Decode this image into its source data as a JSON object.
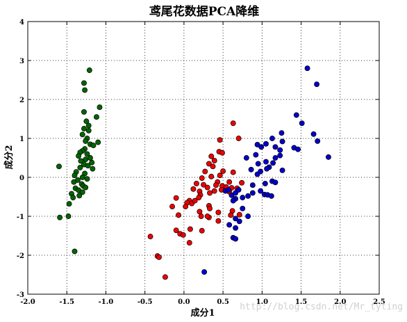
{
  "chart_data": {
    "type": "scatter",
    "title": "鸢尾花数据PCA降维",
    "xlabel": "成分1",
    "ylabel": "成分2",
    "xlim": [
      -2.0,
      2.5
    ],
    "ylim": [
      -3,
      4
    ],
    "xticks": [
      "-2.0",
      "-1.5",
      "-1.0",
      "-0.5",
      "0.0",
      "0.5",
      "1.0",
      "1.5",
      "2.0",
      "2.5"
    ],
    "yticks": [
      "-3",
      "-2",
      "-1",
      "0",
      "1",
      "2",
      "3",
      "4"
    ],
    "grid": true,
    "series": [
      {
        "color": "#006400",
        "points": [
          [
            -1.21,
            2.75
          ],
          [
            -1.28,
            2.42
          ],
          [
            -1.27,
            2.24
          ],
          [
            -1.08,
            1.8
          ],
          [
            -1.28,
            1.68
          ],
          [
            -1.12,
            1.55
          ],
          [
            -1.25,
            1.44
          ],
          [
            -1.22,
            1.33
          ],
          [
            -1.28,
            1.25
          ],
          [
            -1.22,
            1.2
          ],
          [
            -1.3,
            1.1
          ],
          [
            -1.24,
            1.0
          ],
          [
            -1.26,
            0.93
          ],
          [
            -1.2,
            0.85
          ],
          [
            -1.16,
            0.82
          ],
          [
            -1.1,
            0.9
          ],
          [
            -1.27,
            0.73
          ],
          [
            -1.3,
            0.68
          ],
          [
            -1.33,
            0.64
          ],
          [
            -1.24,
            0.6
          ],
          [
            -1.35,
            0.55
          ],
          [
            -1.2,
            0.5
          ],
          [
            -1.26,
            0.46
          ],
          [
            -1.32,
            0.42
          ],
          [
            -1.18,
            0.38
          ],
          [
            -1.28,
            0.33
          ],
          [
            -1.23,
            0.3
          ],
          [
            -1.33,
            0.25
          ],
          [
            -1.17,
            0.22
          ],
          [
            -1.6,
            0.28
          ],
          [
            -1.38,
            0.14
          ],
          [
            -1.27,
            0.1
          ],
          [
            -1.4,
            0.05
          ],
          [
            -1.3,
            0.0
          ],
          [
            -1.24,
            -0.04
          ],
          [
            -1.36,
            -0.07
          ],
          [
            -1.41,
            -0.12
          ],
          [
            -1.31,
            -0.17
          ],
          [
            -1.29,
            -0.22
          ],
          [
            -1.39,
            -0.28
          ],
          [
            -1.26,
            -0.26
          ],
          [
            -1.35,
            -0.33
          ],
          [
            -1.3,
            -0.38
          ],
          [
            -1.44,
            -0.42
          ],
          [
            -1.34,
            -0.47
          ],
          [
            -1.42,
            -0.52
          ],
          [
            -1.47,
            -0.68
          ],
          [
            -1.59,
            -1.03
          ],
          [
            -1.48,
            -1.0
          ],
          [
            -1.4,
            -1.9
          ]
        ]
      },
      {
        "color": "#ee0000",
        "points": [
          [
            0.63,
            1.39
          ],
          [
            0.7,
            1.0
          ],
          [
            0.46,
            0.96
          ],
          [
            0.45,
            0.66
          ],
          [
            0.49,
            0.63
          ],
          [
            0.35,
            0.54
          ],
          [
            0.39,
            0.43
          ],
          [
            0.32,
            0.35
          ],
          [
            0.37,
            0.28
          ],
          [
            0.27,
            0.15
          ],
          [
            0.5,
            0.16
          ],
          [
            0.63,
            0.13
          ],
          [
            0.46,
            0.05
          ],
          [
            0.35,
            0.02
          ],
          [
            0.23,
            -0.02
          ],
          [
            0.43,
            -0.12
          ],
          [
            0.49,
            -0.22
          ],
          [
            0.41,
            -0.2
          ],
          [
            0.3,
            -0.26
          ],
          [
            0.25,
            -0.19
          ],
          [
            0.16,
            -0.16
          ],
          [
            0.12,
            -0.3
          ],
          [
            0.2,
            -0.36
          ],
          [
            0.21,
            -0.45
          ],
          [
            0.33,
            -0.4
          ],
          [
            0.39,
            -0.35
          ],
          [
            0.48,
            -0.32
          ],
          [
            0.54,
            -0.25
          ],
          [
            0.58,
            -0.12
          ],
          [
            0.61,
            -0.27
          ],
          [
            0.58,
            -0.37
          ],
          [
            0.68,
            -0.28
          ],
          [
            0.74,
            -0.14
          ],
          [
            0.19,
            -0.52
          ],
          [
            0.07,
            -0.6
          ],
          [
            0.1,
            -0.67
          ],
          [
            0.14,
            -0.6
          ],
          [
            0.04,
            -0.65
          ],
          [
            0.02,
            -0.75
          ],
          [
            0.32,
            -0.73
          ],
          [
            0.33,
            -0.8
          ],
          [
            0.44,
            -0.9
          ],
          [
            0.62,
            -0.86
          ],
          [
            0.6,
            -0.97
          ],
          [
            0.71,
            -0.96
          ],
          [
            0.44,
            -1.12
          ],
          [
            0.32,
            -1.03
          ],
          [
            0.3,
            -1.0
          ],
          [
            0.22,
            -1.0
          ],
          [
            0.2,
            -0.88
          ],
          [
            -0.1,
            -0.53
          ],
          [
            -0.15,
            -0.75
          ],
          [
            -0.07,
            -0.97
          ],
          [
            -0.1,
            -1.36
          ],
          [
            -0.05,
            -1.45
          ],
          [
            -0.01,
            -1.48
          ],
          [
            0.08,
            -1.33
          ],
          [
            0.07,
            -1.68
          ],
          [
            0.23,
            -1.37
          ],
          [
            -0.43,
            -1.52
          ],
          [
            -0.34,
            -2.02
          ],
          [
            -0.32,
            -2.05
          ],
          [
            -0.24,
            -2.56
          ]
        ]
      },
      {
        "color": "#0000cc",
        "points": [
          [
            1.58,
            2.8
          ],
          [
            1.7,
            2.39
          ],
          [
            1.44,
            1.6
          ],
          [
            1.51,
            1.39
          ],
          [
            1.66,
            1.11
          ],
          [
            1.71,
            0.93
          ],
          [
            1.85,
            0.52
          ],
          [
            1.25,
            1.14
          ],
          [
            1.13,
            1.0
          ],
          [
            1.05,
            0.86
          ],
          [
            1.26,
            0.92
          ],
          [
            1.17,
            0.78
          ],
          [
            1.23,
            0.7
          ],
          [
            1.41,
            0.76
          ],
          [
            1.46,
            0.72
          ],
          [
            0.94,
            0.84
          ],
          [
            0.99,
            0.78
          ],
          [
            0.92,
            0.58
          ],
          [
            1.05,
            0.4
          ],
          [
            1.14,
            0.37
          ],
          [
            1.23,
            0.56
          ],
          [
            1.17,
            0.5
          ],
          [
            1.09,
            0.26
          ],
          [
            1.26,
            0.18
          ],
          [
            0.8,
            0.5
          ],
          [
            0.95,
            0.35
          ],
          [
            0.98,
            0.15
          ],
          [
            1.06,
            0.22
          ],
          [
            0.86,
            0.2
          ],
          [
            0.94,
            0.08
          ],
          [
            0.88,
            -0.2
          ],
          [
            1.13,
            -0.1
          ],
          [
            1.17,
            -0.13
          ],
          [
            1.04,
            -0.16
          ],
          [
            1.03,
            -0.44
          ],
          [
            0.98,
            -0.35
          ],
          [
            1.07,
            -0.45
          ],
          [
            1.12,
            -0.48
          ],
          [
            0.88,
            -0.4
          ],
          [
            0.82,
            -0.48
          ],
          [
            0.75,
            -0.52
          ],
          [
            0.53,
            -0.35
          ],
          [
            0.57,
            -0.32
          ],
          [
            0.61,
            -0.46
          ],
          [
            0.66,
            -0.4
          ],
          [
            0.7,
            -0.32
          ],
          [
            0.66,
            -0.55
          ],
          [
            0.63,
            -0.6
          ],
          [
            0.75,
            -0.8
          ],
          [
            0.82,
            -1.0
          ],
          [
            0.66,
            -1.06
          ],
          [
            0.71,
            -1.13
          ],
          [
            0.58,
            -1.22
          ],
          [
            0.66,
            -1.3
          ],
          [
            0.63,
            -1.55
          ],
          [
            0.66,
            -1.58
          ],
          [
            0.26,
            -2.43
          ]
        ]
      }
    ]
  },
  "watermark": "http://blog.csdn.net/Mr_tyting"
}
